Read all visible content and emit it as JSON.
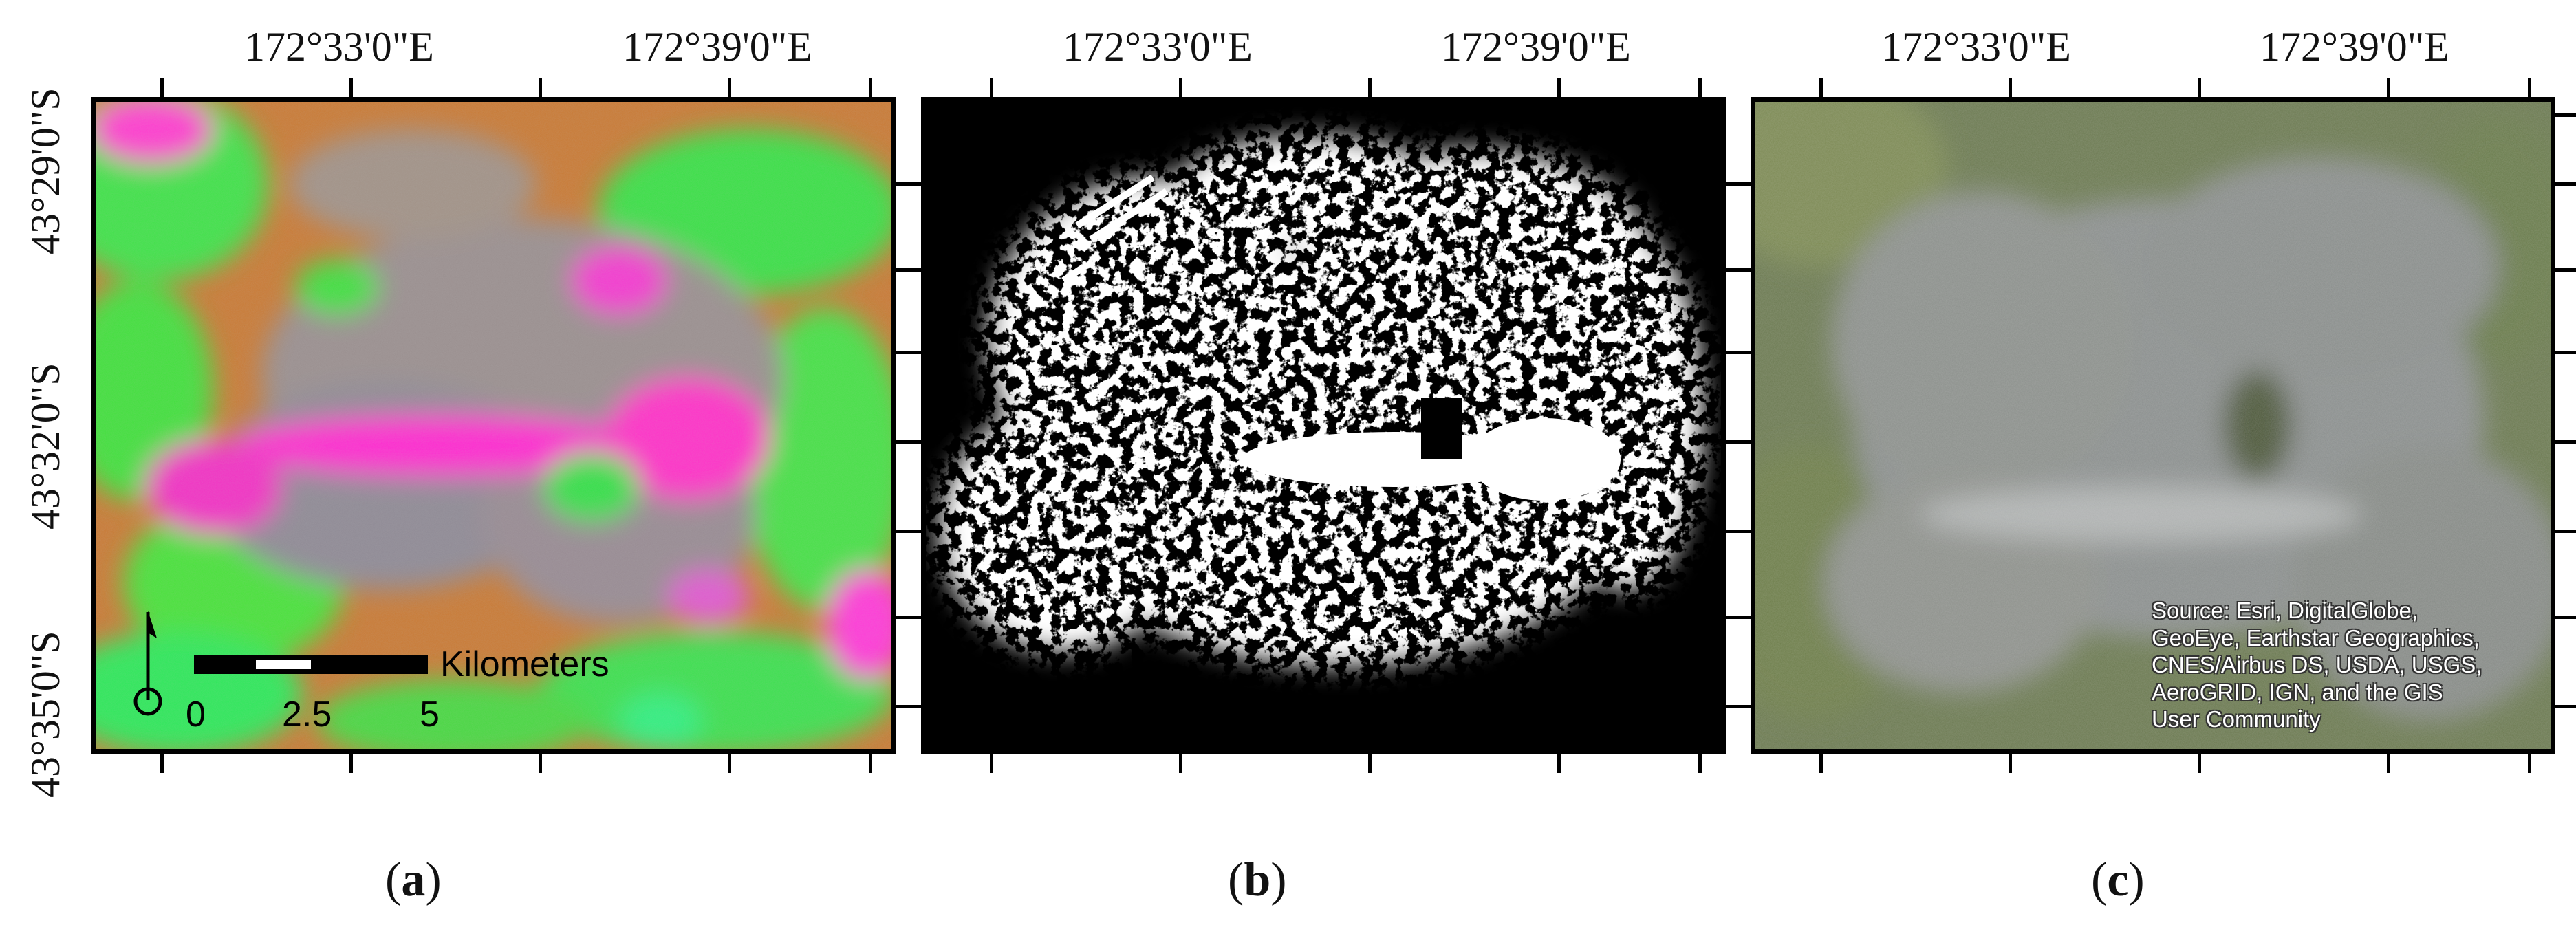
{
  "longitude_labels": [
    "172°33'0\"E",
    "172°39'0\"E"
  ],
  "latitude_labels": [
    "43°29'0\"S",
    "43°32'0\"S",
    "43°35'0\"S"
  ],
  "panels": [
    {
      "label_open": "(",
      "label_letter": "a",
      "label_close": ")"
    },
    {
      "label_open": "(",
      "label_letter": "b",
      "label_close": ")"
    },
    {
      "label_open": "(",
      "label_letter": "c",
      "label_close": ")"
    }
  ],
  "scale_bar": {
    "unit": "Kilometers",
    "ticks": [
      "0",
      "2.5",
      "5"
    ]
  },
  "attribution_lines": [
    "Source: Esri, DigitalGlobe,",
    "GeoEye, Earthstar Geographics,",
    "CNES/Airbus DS, USDA, USGS,",
    "AeroGRID, IGN, and the GIS",
    "User Community"
  ],
  "colors": {
    "false_color_magenta": "#ff22cc",
    "false_color_green": "#33ee33",
    "false_color_orange": "#d27a2a",
    "urban_white": "#ffffff",
    "nonurban_black": "#000000",
    "satellite_gray": "#8a8f8e",
    "satellite_field_green": "#6f8350"
  }
}
